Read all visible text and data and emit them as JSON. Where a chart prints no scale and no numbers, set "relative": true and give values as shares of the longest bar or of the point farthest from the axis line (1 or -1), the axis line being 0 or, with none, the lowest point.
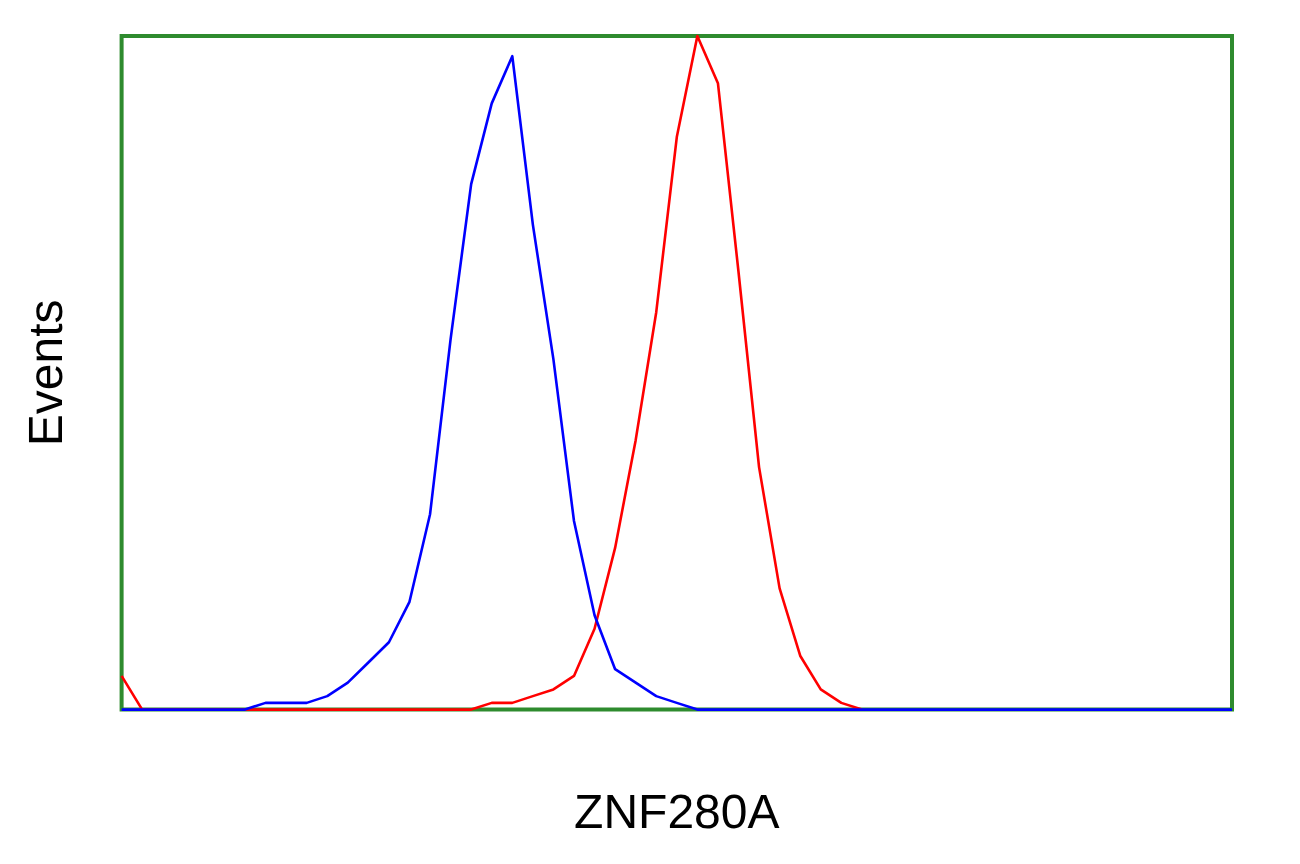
{
  "chart_data": {
    "type": "line",
    "xlabel": "ZNF280A",
    "ylabel": "Events",
    "relative": true,
    "grid": false,
    "legend": false,
    "marker": "none",
    "categories": [
      null,
      null,
      null,
      null,
      null,
      null,
      null,
      null,
      null,
      null,
      null,
      null,
      null,
      null,
      null,
      null,
      null,
      null,
      null,
      null,
      null,
      null,
      null,
      null,
      null,
      null,
      null,
      null,
      null,
      null,
      null,
      null,
      null,
      null,
      null,
      null,
      null,
      null,
      null,
      null,
      null,
      null,
      null,
      null,
      null,
      null,
      null,
      null,
      null,
      null,
      null,
      null,
      null,
      null,
      null
    ],
    "series": [
      {
        "color": "#0000ff",
        "values": [
          0,
          0,
          0,
          0,
          0,
          0,
          0,
          0.01,
          0.01,
          0.01,
          0.02,
          0.04,
          0.07,
          0.1,
          0.16,
          0.29,
          0.55,
          0.78,
          0.9,
          0.97,
          0.72,
          0.52,
          0.28,
          0.14,
          0.06,
          0.04,
          0.02,
          0.01,
          0,
          0,
          0,
          0,
          0,
          0,
          0,
          0,
          0,
          0,
          0,
          0,
          0,
          0,
          0,
          0,
          0,
          0,
          0,
          0,
          0,
          0,
          0,
          0,
          0,
          0,
          0
        ]
      },
      {
        "color": "#ff0000",
        "values": [
          0.05,
          0,
          0,
          0,
          0,
          0,
          0,
          0,
          0,
          0,
          0,
          0,
          0,
          0,
          0,
          0,
          0,
          0,
          0.01,
          0.01,
          0.02,
          0.03,
          0.05,
          0.12,
          0.24,
          0.4,
          0.59,
          0.85,
          1.0,
          0.93,
          0.65,
          0.36,
          0.18,
          0.08,
          0.03,
          0.01,
          0,
          null,
          null,
          null,
          null,
          null,
          null,
          null,
          null,
          null,
          null,
          null,
          null,
          null,
          null,
          null,
          null,
          null,
          null
        ]
      }
    ]
  }
}
